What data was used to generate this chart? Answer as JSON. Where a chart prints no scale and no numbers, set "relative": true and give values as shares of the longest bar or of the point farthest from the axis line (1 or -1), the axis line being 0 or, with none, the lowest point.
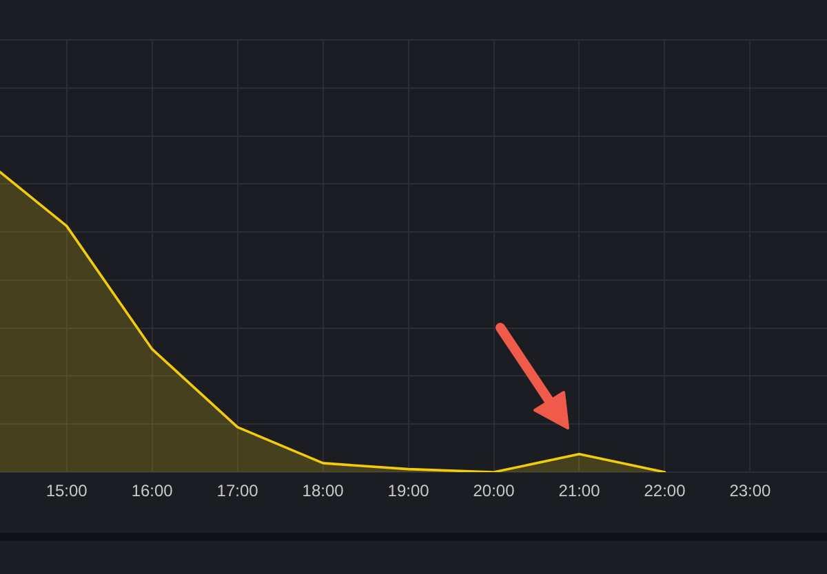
{
  "chart_data": {
    "type": "area",
    "relative": true,
    "x": [
      14.22,
      15,
      16,
      17,
      18,
      19,
      20,
      21,
      22
    ],
    "xlim": [
      14.22,
      23.9
    ],
    "xticks": [
      {
        "value": 15,
        "label": "15:00"
      },
      {
        "value": 16,
        "label": "16:00"
      },
      {
        "value": 17,
        "label": "17:00"
      },
      {
        "value": 18,
        "label": "18:00"
      },
      {
        "value": 19,
        "label": "19:00"
      },
      {
        "value": 20,
        "label": "20:00"
      },
      {
        "value": 21,
        "label": "21:00"
      },
      {
        "value": 22,
        "label": "22:00"
      },
      {
        "value": 23,
        "label": "23:00"
      }
    ],
    "series": [
      {
        "color": "#f2cc0c",
        "values": [
          1,
          0.82,
          0.41,
          0.15,
          0.03,
          0.01,
          0,
          0.06,
          0
        ]
      }
    ],
    "grid": true,
    "marker": "none",
    "line_style": "solid"
  }
}
